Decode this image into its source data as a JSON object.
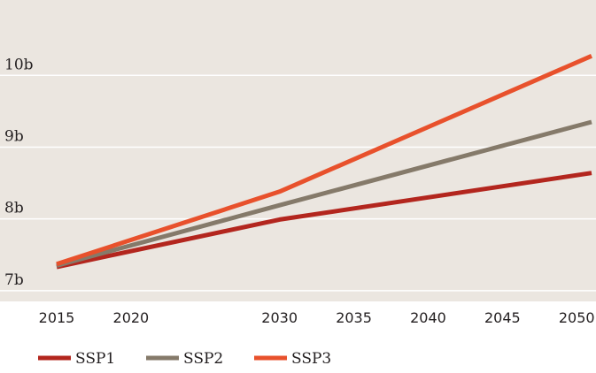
{
  "chart_data": {
    "type": "line",
    "title": "",
    "xlabel": "",
    "ylabel": "",
    "x": [
      2015,
      2030,
      2051
    ],
    "xticks": [
      2015,
      2020,
      2030,
      2035,
      2040,
      2045,
      2050
    ],
    "xtick_labels": [
      "2015",
      "2020",
      "2030",
      "2035",
      "2040",
      "2045",
      "2050"
    ],
    "yticks": [
      7,
      8,
      9,
      10
    ],
    "ytick_labels": [
      "7b",
      "8b",
      "9b",
      "10b"
    ],
    "ylim": [
      6.85,
      11.05
    ],
    "grid": "horizontal",
    "legend_position": "bottom-left",
    "series": [
      {
        "name": "SSP1",
        "color": "#b3261e",
        "values": [
          7.33,
          7.99,
          8.64
        ]
      },
      {
        "name": "SSP2",
        "color": "#857a6a",
        "values": [
          7.35,
          8.19,
          9.35
        ]
      },
      {
        "name": "SSP3",
        "color": "#e8512c",
        "values": [
          7.37,
          8.38,
          10.27
        ]
      }
    ]
  },
  "colors": {
    "plot_background": "#ebe6e0",
    "gridline": "#ffffff"
  }
}
